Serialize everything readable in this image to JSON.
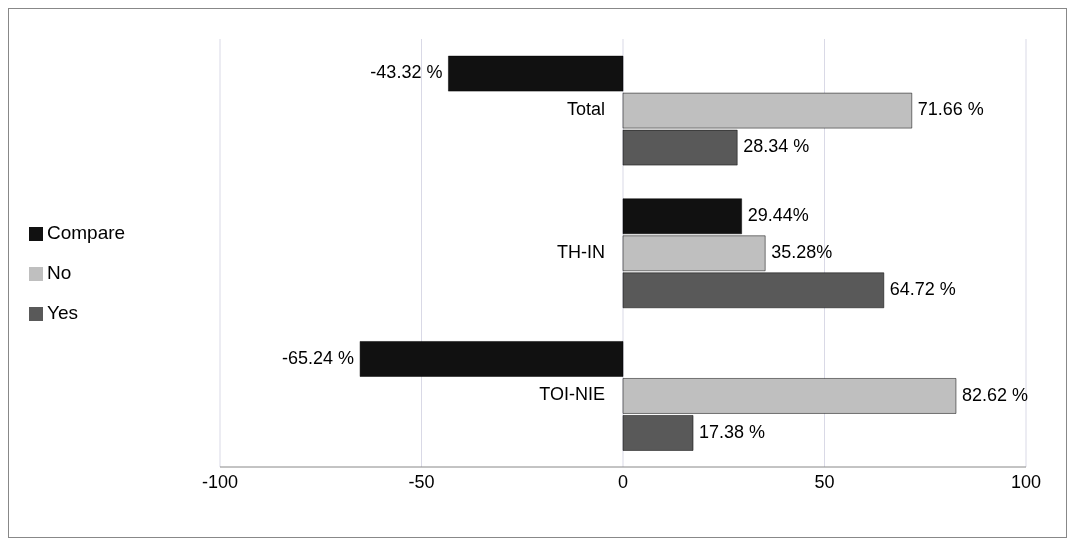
{
  "chart_data": {
    "type": "bar",
    "orientation": "horizontal",
    "categories": [
      "Total",
      "TH-IN",
      "TOI-NIE"
    ],
    "series": [
      {
        "name": "Compare",
        "color": "#111111",
        "values": [
          -43.32,
          29.44,
          -65.24
        ],
        "value_labels": [
          "-43.32 %",
          "29.44%",
          "-65.24 %"
        ]
      },
      {
        "name": "No",
        "color": "#bfbfbf",
        "values": [
          71.66,
          35.28,
          82.62
        ],
        "value_labels": [
          "71.66 %",
          "35.28%",
          "82.62 %"
        ]
      },
      {
        "name": "Yes",
        "color": "#595959",
        "values": [
          28.34,
          64.72,
          17.38
        ],
        "value_labels": [
          "28.34 %",
          "64.72 %",
          "17.38 %"
        ]
      }
    ],
    "xlim": [
      -100,
      100
    ],
    "xticks": [
      -100,
      -50,
      0,
      50,
      100
    ],
    "grid": "x",
    "legend": "left"
  }
}
